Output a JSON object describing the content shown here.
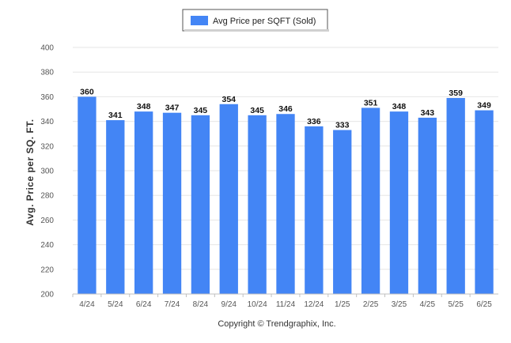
{
  "chart_data": {
    "type": "bar",
    "categories": [
      "4/24",
      "5/24",
      "6/24",
      "7/24",
      "8/24",
      "9/24",
      "10/24",
      "11/24",
      "12/24",
      "1/25",
      "2/25",
      "3/25",
      "4/25",
      "5/25",
      "6/25"
    ],
    "series": [
      {
        "name": "Avg Price per SQFT (Sold)",
        "values": [
          360,
          341,
          348,
          347,
          345,
          354,
          345,
          346,
          336,
          333,
          351,
          348,
          343,
          359,
          349
        ]
      }
    ],
    "ylabel": "Avg. Price per SQ. FT.",
    "xlabel": "",
    "ylim": [
      200,
      400
    ],
    "yticks": [
      200,
      220,
      240,
      260,
      280,
      300,
      320,
      340,
      360,
      380,
      400
    ],
    "grid": true,
    "legend_position": "top-center",
    "bar_color": "#4385f5",
    "footer": "Copyright © Trendgraphix, Inc."
  }
}
